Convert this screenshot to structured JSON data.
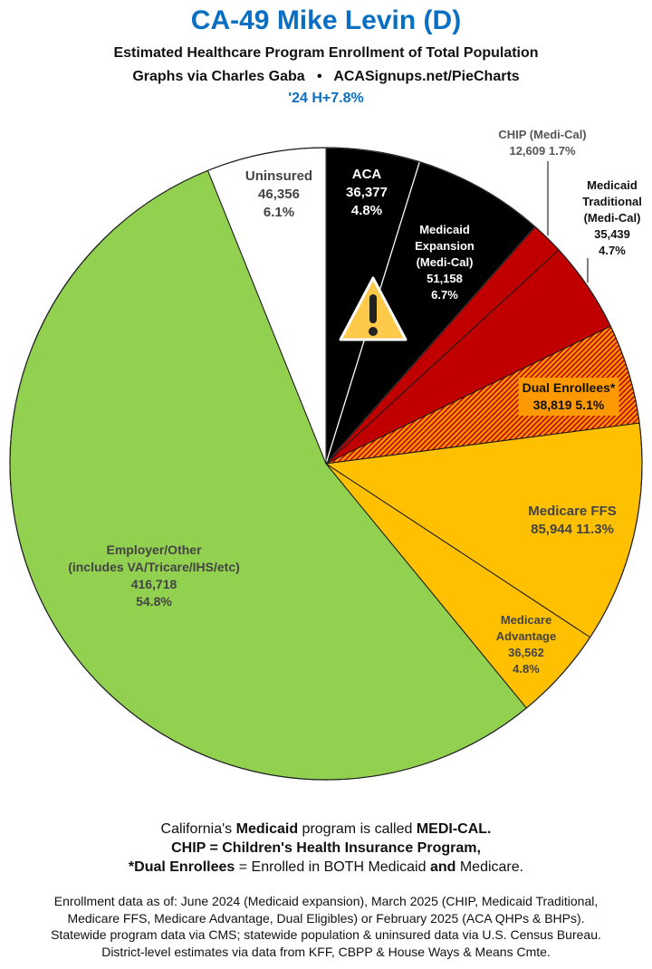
{
  "header": {
    "title": "CA-49 Mike Levin (D)",
    "subtitle": "Estimated Healthcare Program Enrollment of Total Population",
    "credit": "Graphs via Charles Gaba   •   ACASignups.net/PieCharts",
    "note": "'24 H+7.8%"
  },
  "chart_data": {
    "type": "pie",
    "start": "top",
    "direction": "clockwise",
    "slices": [
      {
        "label": "ACA",
        "value": 36377,
        "value_text": "36,377",
        "percent": 4.8,
        "percent_text": "4.8%",
        "color": "#000000"
      },
      {
        "label": "Medicaid Expansion (Medi-Cal)",
        "value": 51158,
        "value_text": "51,158",
        "percent": 6.7,
        "percent_text": "6.7%",
        "color": "#000000"
      },
      {
        "label": "CHIP (Medi-Cal)",
        "value": 12609,
        "value_text": "12,609",
        "percent": 1.7,
        "percent_text": "1.7%",
        "color": "#c00000"
      },
      {
        "label": "Medicaid Traditional (Medi-Cal)",
        "value": 35439,
        "value_text": "35,439",
        "percent": 4.7,
        "percent_text": "4.7%",
        "color": "#c00000"
      },
      {
        "label": "Dual Enrollees*",
        "value": 38819,
        "value_text": "38,819",
        "percent": 5.1,
        "percent_text": "5.1%",
        "color": "#ff9900",
        "pattern": "red-orange hatch"
      },
      {
        "label": "Medicare FFS",
        "value": 85944,
        "value_text": "85,944",
        "percent": 11.3,
        "percent_text": "11.3%",
        "color": "#ffc000"
      },
      {
        "label": "Medicare Advantage",
        "value": 36562,
        "value_text": "36,562",
        "percent": 4.8,
        "percent_text": "4.8%",
        "color": "#ffc000"
      },
      {
        "label": "Employer/Other",
        "sublabel": "(includes VA/Tricare/IHS/etc)",
        "value": 416718,
        "value_text": "416,718",
        "percent": 54.8,
        "percent_text": "54.8%",
        "color": "#92d050"
      },
      {
        "label": "Uninsured",
        "value": 46356,
        "value_text": "46,356",
        "percent": 6.1,
        "percent_text": "6.1%",
        "color": "#ffffff"
      }
    ],
    "icons": [
      "warning-icon"
    ]
  },
  "notes": {
    "line1_a": "California's ",
    "line1_b": "Medicaid",
    "line1_c": " program is called ",
    "line1_d": "MEDI-CAL.",
    "line2": "CHIP = Children's Health Insurance Program,",
    "line3_a": "*Dual Enrollees",
    "line3_b": " = Enrolled in BOTH Medicaid ",
    "line3_c": "and",
    "line3_d": " Medicare."
  },
  "footer": {
    "line1": "Enrollment data as of: June 2024 (Medicaid expansion), March 2025 (CHIP, Medicaid Traditional,",
    "line2": "Medicare FFS, Medicare Advantage, Dual Eligibles) or February 2025 (ACA QHPs & BHPs).",
    "line3": "Statewide program data via CMS; statewide population & uninsured data via U.S. Census Bureau.",
    "line4": "District-level estimates via data from KFF, CBPP & House Ways & Means Cmte."
  }
}
